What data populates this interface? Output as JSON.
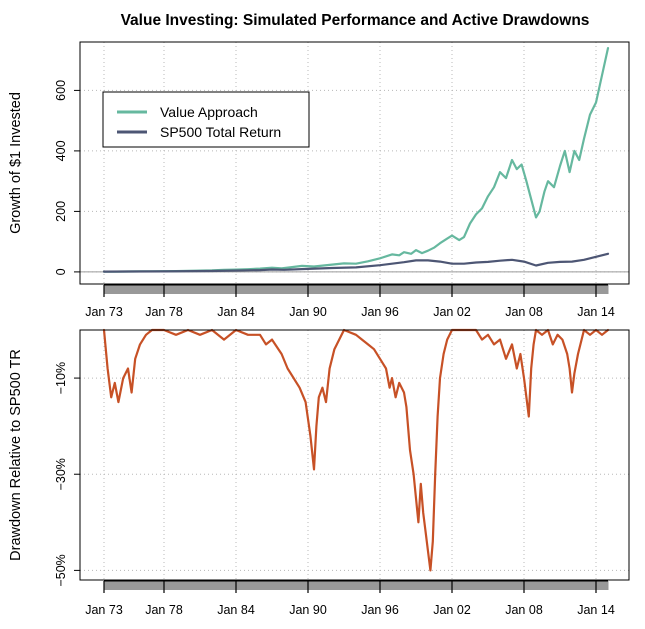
{
  "title": "Value Investing: Simulated Performance and Active Drawdowns",
  "colors": {
    "value": "#66b89f",
    "sp500": "#4d5674",
    "drawdown": "#c75126",
    "grid": "#b8b8b8",
    "axis": "#000000",
    "zero_line": "#9a9a9a"
  },
  "x_tick_labels": [
    "Jan 73",
    "Jan 78",
    "Jan 84",
    "Jan 90",
    "Jan 96",
    "Jan 02",
    "Jan 08",
    "Jan 14"
  ],
  "chart_data": [
    {
      "type": "line",
      "title": "Value Investing: Simulated Performance and Active Drawdowns",
      "ylabel": "Growth of $1 Invested",
      "xlabel": "",
      "x_range": [
        1973.0,
        2015.0
      ],
      "ylim": [
        -40,
        760
      ],
      "y_ticks": [
        0,
        200,
        400,
        600
      ],
      "y_tick_labels": [
        "0",
        "200",
        "400",
        "600"
      ],
      "grid": true,
      "legend": {
        "position": "top-left",
        "entries": [
          "Value Approach",
          "SP500 Total Return"
        ]
      },
      "series": [
        {
          "name": "Value Approach",
          "color_key": "value",
          "points": [
            [
              1973.0,
              1.0
            ],
            [
              1974.0,
              1.0
            ],
            [
              1975.0,
              1.2
            ],
            [
              1976.0,
              1.6
            ],
            [
              1977.0,
              1.9
            ],
            [
              1978.0,
              2.2
            ],
            [
              1979.0,
              2.8
            ],
            [
              1980.0,
              3.5
            ],
            [
              1981.0,
              4.2
            ],
            [
              1982.0,
              5.0
            ],
            [
              1983.0,
              6.5
            ],
            [
              1984.0,
              7.5
            ],
            [
              1985.0,
              9.0
            ],
            [
              1986.0,
              11.0
            ],
            [
              1987.0,
              14.0
            ],
            [
              1987.8,
              12.0
            ],
            [
              1988.5,
              15.0
            ],
            [
              1989.5,
              20.0
            ],
            [
              1990.5,
              18.0
            ],
            [
              1991.0,
              20.0
            ],
            [
              1992.0,
              24.0
            ],
            [
              1993.0,
              28.0
            ],
            [
              1994.0,
              27.0
            ],
            [
              1995.0,
              35.0
            ],
            [
              1996.0,
              45.0
            ],
            [
              1997.0,
              58.0
            ],
            [
              1997.6,
              55.0
            ],
            [
              1998.0,
              65.0
            ],
            [
              1998.6,
              60.0
            ],
            [
              1999.0,
              72.0
            ],
            [
              1999.5,
              62.0
            ],
            [
              2000.0,
              70.0
            ],
            [
              2000.5,
              80.0
            ],
            [
              2001.0,
              95.0
            ],
            [
              2001.6,
              110.0
            ],
            [
              2002.0,
              120.0
            ],
            [
              2002.6,
              105.0
            ],
            [
              2003.0,
              115.0
            ],
            [
              2003.5,
              160.0
            ],
            [
              2004.0,
              190.0
            ],
            [
              2004.5,
              210.0
            ],
            [
              2005.0,
              250.0
            ],
            [
              2005.5,
              280.0
            ],
            [
              2006.0,
              330.0
            ],
            [
              2006.5,
              310.0
            ],
            [
              2007.0,
              370.0
            ],
            [
              2007.4,
              340.0
            ],
            [
              2007.8,
              355.0
            ],
            [
              2008.2,
              300.0
            ],
            [
              2008.6,
              240.0
            ],
            [
              2009.0,
              180.0
            ],
            [
              2009.3,
              200.0
            ],
            [
              2009.7,
              265.0
            ],
            [
              2010.0,
              300.0
            ],
            [
              2010.5,
              280.0
            ],
            [
              2011.0,
              350.0
            ],
            [
              2011.4,
              400.0
            ],
            [
              2011.8,
              330.0
            ],
            [
              2012.2,
              400.0
            ],
            [
              2012.6,
              370.0
            ],
            [
              2013.0,
              440.0
            ],
            [
              2013.5,
              520.0
            ],
            [
              2014.0,
              560.0
            ],
            [
              2014.5,
              650.0
            ],
            [
              2015.0,
              740.0
            ]
          ]
        },
        {
          "name": "SP500 Total Return",
          "color_key": "sp500",
          "points": [
            [
              1973.0,
              1.0
            ],
            [
              1978.0,
              1.5
            ],
            [
              1982.0,
              3.0
            ],
            [
              1986.0,
              6.0
            ],
            [
              1987.0,
              8.0
            ],
            [
              1988.0,
              7.0
            ],
            [
              1990.0,
              10.0
            ],
            [
              1992.0,
              13.0
            ],
            [
              1994.0,
              15.0
            ],
            [
              1996.0,
              22.0
            ],
            [
              1998.0,
              32.0
            ],
            [
              1999.0,
              38.0
            ],
            [
              2000.0,
              38.0
            ],
            [
              2001.0,
              34.0
            ],
            [
              2002.0,
              27.0
            ],
            [
              2003.0,
              27.0
            ],
            [
              2004.0,
              31.0
            ],
            [
              2005.0,
              33.0
            ],
            [
              2006.0,
              37.0
            ],
            [
              2007.0,
              40.0
            ],
            [
              2008.0,
              34.0
            ],
            [
              2009.0,
              21.0
            ],
            [
              2010.0,
              30.0
            ],
            [
              2011.0,
              33.0
            ],
            [
              2012.0,
              34.0
            ],
            [
              2013.0,
              40.0
            ],
            [
              2014.0,
              50.0
            ],
            [
              2015.0,
              60.0
            ]
          ]
        }
      ]
    },
    {
      "type": "line",
      "title": "",
      "ylabel": "Drawdown Relative to SP500 TR",
      "xlabel": "",
      "x_range": [
        1973.0,
        2015.0
      ],
      "ylim": [
        -52,
        0
      ],
      "y_ticks": [
        -10,
        -30,
        -50
      ],
      "y_tick_labels": [
        "−10%",
        "−30%",
        "−50%"
      ],
      "grid": true,
      "series": [
        {
          "name": "",
          "color_key": "drawdown",
          "points": [
            [
              1973.0,
              0.0
            ],
            [
              1973.3,
              -8.0
            ],
            [
              1973.6,
              -14.0
            ],
            [
              1973.9,
              -11.0
            ],
            [
              1974.2,
              -15.0
            ],
            [
              1974.6,
              -10.0
            ],
            [
              1975.0,
              -8.0
            ],
            [
              1975.3,
              -13.0
            ],
            [
              1975.6,
              -6.0
            ],
            [
              1976.0,
              -3.0
            ],
            [
              1976.5,
              -1.0
            ],
            [
              1977.0,
              0.0
            ],
            [
              1978.0,
              0.0
            ],
            [
              1979.0,
              -1.0
            ],
            [
              1980.0,
              0.0
            ],
            [
              1981.0,
              -1.0
            ],
            [
              1982.0,
              0.0
            ],
            [
              1983.0,
              -2.0
            ],
            [
              1984.0,
              0.0
            ],
            [
              1985.0,
              -1.0
            ],
            [
              1986.0,
              -1.0
            ],
            [
              1986.5,
              -3.0
            ],
            [
              1987.0,
              -2.0
            ],
            [
              1987.8,
              -5.0
            ],
            [
              1988.3,
              -8.0
            ],
            [
              1988.8,
              -10.0
            ],
            [
              1989.3,
              -12.0
            ],
            [
              1989.8,
              -15.0
            ],
            [
              1990.2,
              -22.0
            ],
            [
              1990.5,
              -29.0
            ],
            [
              1990.7,
              -20.0
            ],
            [
              1990.9,
              -14.0
            ],
            [
              1991.2,
              -12.0
            ],
            [
              1991.5,
              -15.0
            ],
            [
              1991.8,
              -8.0
            ],
            [
              1992.2,
              -4.0
            ],
            [
              1992.6,
              -2.0
            ],
            [
              1993.0,
              0.0
            ],
            [
              1994.0,
              -1.0
            ],
            [
              1994.5,
              -2.0
            ],
            [
              1995.0,
              -3.0
            ],
            [
              1995.5,
              -4.0
            ],
            [
              1996.0,
              -6.0
            ],
            [
              1996.5,
              -8.0
            ],
            [
              1996.8,
              -12.0
            ],
            [
              1997.0,
              -10.0
            ],
            [
              1997.3,
              -14.0
            ],
            [
              1997.6,
              -11.0
            ],
            [
              1998.0,
              -13.0
            ],
            [
              1998.2,
              -16.0
            ],
            [
              1998.5,
              -25.0
            ],
            [
              1998.8,
              -30.0
            ],
            [
              1999.0,
              -35.0
            ],
            [
              1999.2,
              -40.0
            ],
            [
              1999.4,
              -32.0
            ],
            [
              1999.6,
              -38.0
            ],
            [
              1999.8,
              -42.0
            ],
            [
              2000.0,
              -46.0
            ],
            [
              2000.2,
              -50.0
            ],
            [
              2000.4,
              -44.0
            ],
            [
              2000.6,
              -30.0
            ],
            [
              2000.8,
              -18.0
            ],
            [
              2001.0,
              -10.0
            ],
            [
              2001.3,
              -5.0
            ],
            [
              2001.6,
              -2.0
            ],
            [
              2002.0,
              0.0
            ],
            [
              2003.0,
              0.0
            ],
            [
              2004.0,
              0.0
            ],
            [
              2004.5,
              -2.0
            ],
            [
              2005.0,
              -1.0
            ],
            [
              2005.5,
              -3.0
            ],
            [
              2006.0,
              -2.0
            ],
            [
              2006.5,
              -6.0
            ],
            [
              2007.0,
              -3.0
            ],
            [
              2007.4,
              -8.0
            ],
            [
              2007.7,
              -5.0
            ],
            [
              2008.0,
              -10.0
            ],
            [
              2008.2,
              -14.0
            ],
            [
              2008.4,
              -18.0
            ],
            [
              2008.6,
              -8.0
            ],
            [
              2008.8,
              -3.0
            ],
            [
              2009.0,
              0.0
            ],
            [
              2009.5,
              -1.0
            ],
            [
              2010.0,
              0.0
            ],
            [
              2010.4,
              -3.0
            ],
            [
              2010.8,
              -1.0
            ],
            [
              2011.2,
              -2.0
            ],
            [
              2011.6,
              -5.0
            ],
            [
              2011.8,
              -8.0
            ],
            [
              2012.0,
              -13.0
            ],
            [
              2012.2,
              -9.0
            ],
            [
              2012.5,
              -5.0
            ],
            [
              2012.8,
              -2.0
            ],
            [
              2013.0,
              0.0
            ],
            [
              2013.5,
              -1.0
            ],
            [
              2014.0,
              0.0
            ],
            [
              2014.5,
              -1.0
            ],
            [
              2015.0,
              0.0
            ]
          ]
        }
      ]
    }
  ]
}
